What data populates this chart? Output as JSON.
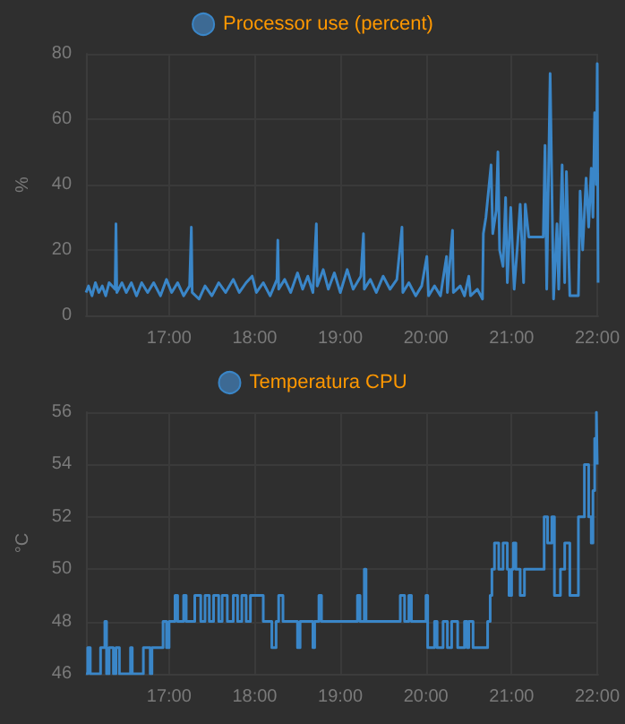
{
  "chart_data": [
    {
      "type": "line",
      "ylabel": "%",
      "legend": "top",
      "grid": true,
      "marker": "none",
      "xlim": [
        16.03,
        22.01
      ],
      "xticks": [
        {
          "value": 17,
          "label": "17:00"
        },
        {
          "value": 18,
          "label": "18:00"
        },
        {
          "value": 19,
          "label": "19:00"
        },
        {
          "value": 20,
          "label": "20:00"
        },
        {
          "value": 21,
          "label": "21:00"
        },
        {
          "value": 22,
          "label": "22:00"
        }
      ],
      "ylim": [
        0,
        80
      ],
      "yticks": [
        0,
        20,
        40,
        60,
        80
      ],
      "series": [
        {
          "name": "Processor use (percent)",
          "color": "#3a86c8",
          "x": [
            16.03,
            16.06,
            16.1,
            16.14,
            16.18,
            16.22,
            16.26,
            16.3,
            16.37,
            16.38,
            16.39,
            16.45,
            16.5,
            16.56,
            16.62,
            16.68,
            16.75,
            16.82,
            16.9,
            16.97,
            17.03,
            17.1,
            17.17,
            17.24,
            17.26,
            17.27,
            17.35,
            17.42,
            17.5,
            17.58,
            17.66,
            17.75,
            17.82,
            17.9,
            17.97,
            18.02,
            18.1,
            18.18,
            18.26,
            18.27,
            18.28,
            18.35,
            18.42,
            18.5,
            18.56,
            18.62,
            18.68,
            18.72,
            18.73,
            18.8,
            18.86,
            18.93,
            19.0,
            19.08,
            19.15,
            19.24,
            19.27,
            19.28,
            19.35,
            19.42,
            19.5,
            19.58,
            19.66,
            19.72,
            19.73,
            19.8,
            19.88,
            19.95,
            20.01,
            20.03,
            20.1,
            20.17,
            20.24,
            20.25,
            20.31,
            20.32,
            20.4,
            20.45,
            20.5,
            20.52,
            20.6,
            20.66,
            20.67,
            20.7,
            20.76,
            20.78,
            20.82,
            20.84,
            20.86,
            20.9,
            20.93,
            20.95,
            20.99,
            21.03,
            21.07,
            21.1,
            21.14,
            21.16,
            21.2,
            21.37,
            21.39,
            21.41,
            21.45,
            21.49,
            21.53,
            21.55,
            21.59,
            21.62,
            21.64,
            21.68,
            21.78,
            21.8,
            21.83,
            21.87,
            21.9,
            21.93,
            21.95,
            21.97,
            21.99,
            22.0,
            22.01
          ],
          "values": [
            7,
            9,
            6,
            10,
            7,
            9,
            6,
            10,
            8,
            28,
            7,
            10,
            7,
            10,
            6,
            10,
            7,
            10,
            6,
            11,
            7,
            10,
            6,
            9,
            27,
            7,
            5,
            9,
            6,
            10,
            7,
            11,
            7,
            10,
            12,
            7,
            10,
            6,
            11,
            23,
            8,
            11,
            7,
            13,
            8,
            12,
            7,
            28,
            9,
            14,
            8,
            13,
            7,
            14,
            8,
            12,
            25,
            8,
            11,
            7,
            12,
            8,
            11,
            27,
            7,
            10,
            6,
            9,
            18,
            6,
            9,
            6,
            18,
            7,
            26,
            7,
            9,
            6,
            12,
            6,
            8,
            5,
            25,
            30,
            46,
            25,
            32,
            50,
            20,
            15,
            36,
            10,
            33,
            8,
            22,
            34,
            10,
            34,
            24,
            24,
            52,
            8,
            74,
            5,
            28,
            8,
            46,
            10,
            44,
            6,
            6,
            38,
            20,
            42,
            27,
            45,
            30,
            62,
            40,
            77,
            10
          ]
        }
      ]
    },
    {
      "type": "step",
      "ylabel": "°C",
      "legend": "top",
      "grid": true,
      "marker": "none",
      "xlim": [
        16.03,
        22.01
      ],
      "xticks": [
        {
          "value": 17,
          "label": "17:00"
        },
        {
          "value": 18,
          "label": "18:00"
        },
        {
          "value": 19,
          "label": "19:00"
        },
        {
          "value": 20,
          "label": "20:00"
        },
        {
          "value": 21,
          "label": "21:00"
        },
        {
          "value": 22,
          "label": "22:00"
        }
      ],
      "ylim": [
        46,
        56
      ],
      "yticks": [
        46,
        48,
        50,
        52,
        54,
        56
      ],
      "series": [
        {
          "name": "Temperatura CPU",
          "color": "#3a86c8",
          "x": [
            16.03,
            16.05,
            16.08,
            16.2,
            16.25,
            16.27,
            16.3,
            16.35,
            16.38,
            16.42,
            16.55,
            16.57,
            16.7,
            16.78,
            16.8,
            16.93,
            16.97,
            17.0,
            17.07,
            17.1,
            17.17,
            17.2,
            17.3,
            17.37,
            17.42,
            17.47,
            17.52,
            17.58,
            17.62,
            17.68,
            17.75,
            17.8,
            17.85,
            17.9,
            17.95,
            18.1,
            18.2,
            18.25,
            18.28,
            18.33,
            18.5,
            18.53,
            18.68,
            18.7,
            18.75,
            18.78,
            19.2,
            19.23,
            19.28,
            19.3,
            19.7,
            19.75,
            19.8,
            19.83,
            20.0,
            20.02,
            20.1,
            20.13,
            20.2,
            20.25,
            20.3,
            20.37,
            20.45,
            20.48,
            20.5,
            20.55,
            20.72,
            20.75,
            20.77,
            20.8,
            20.85,
            20.9,
            20.95,
            20.97,
            21.0,
            21.02,
            21.05,
            21.1,
            21.15,
            21.38,
            21.42,
            21.47,
            21.5,
            21.57,
            21.62,
            21.68,
            21.78,
            21.85,
            21.9,
            21.93,
            21.95,
            21.97,
            21.99,
            22.0
          ],
          "values": [
            46,
            47,
            46,
            47,
            48,
            46,
            47,
            46,
            47,
            46,
            47,
            46,
            47,
            46,
            47,
            48,
            47,
            48,
            49,
            48,
            49,
            48,
            49,
            48,
            49,
            48,
            49,
            48,
            49,
            48,
            49,
            48,
            49,
            48,
            49,
            48,
            47,
            48,
            49,
            48,
            47,
            48,
            47,
            48,
            49,
            48,
            49,
            48,
            50,
            48,
            49,
            48,
            49,
            48,
            49,
            47,
            48,
            47,
            48,
            47,
            48,
            47,
            48,
            47,
            48,
            47,
            48,
            49,
            50,
            51,
            50,
            51,
            50,
            49,
            50,
            51,
            50,
            49,
            50,
            52,
            51,
            52,
            49,
            50,
            51,
            49,
            52,
            54,
            52,
            51,
            53,
            55,
            56,
            54
          ]
        }
      ]
    }
  ]
}
